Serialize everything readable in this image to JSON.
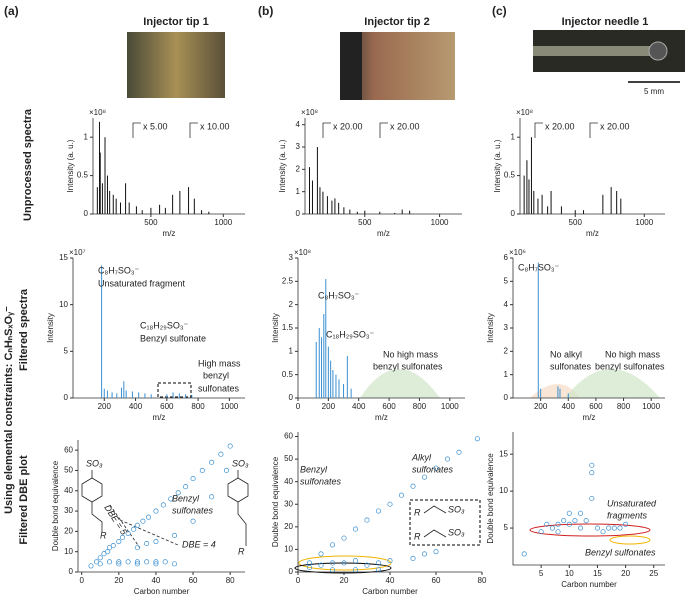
{
  "panel_labels": [
    "(a)",
    "(b)",
    "(c)"
  ],
  "column_titles": [
    "Injector tip 1",
    "Injector tip 2",
    "Injector needle 1"
  ],
  "row_labels": [
    "Unprocessed spectra",
    "Filtered spectra",
    "Filtered DBE plot"
  ],
  "group_label": "Using elemental constraints: CₙHₙSₓOᵧ⁻",
  "scale_bar": "5 mm",
  "chart_data": [
    {
      "type": "spectrum",
      "xlabel": "m/z",
      "ylabel": "Intensity (a. u.)",
      "y_exponent": "×10⁸",
      "color": "#111111",
      "x": [
        130,
        145,
        150,
        165,
        183,
        200,
        215,
        240,
        260,
        290,
        325,
        350,
        400,
        440,
        500,
        560,
        600,
        650,
        700,
        760,
        800,
        850,
        900
      ],
      "values": [
        0.35,
        1.2,
        0.8,
        0.4,
        1.0,
        0.5,
        0.3,
        0.25,
        0.2,
        0.15,
        0.4,
        0.15,
        0.1,
        0.05,
        0.08,
        0.12,
        0.08,
        0.25,
        0.3,
        0.35,
        0.2,
        0.05,
        0.03
      ],
      "xlim": [
        100,
        1150
      ],
      "xticks": [
        500,
        1000
      ],
      "ylim": [
        0,
        1.25
      ],
      "yticks": [
        0,
        0.5,
        1
      ],
      "annotations": [
        "x 5.00",
        "x 10.00"
      ]
    },
    {
      "type": "spectrum",
      "xlabel": "m/z",
      "ylabel": "Intensity (a. u.)",
      "y_exponent": "×10⁸",
      "color": "#111111",
      "x": [
        130,
        150,
        183,
        200,
        220,
        250,
        280,
        300,
        325,
        360,
        400,
        450,
        500,
        600,
        700,
        750,
        800
      ],
      "values": [
        2.1,
        1.5,
        3.0,
        1.2,
        1.0,
        0.8,
        0.6,
        0.7,
        0.5,
        0.3,
        0.2,
        0.1,
        0.15,
        0.1,
        0.05,
        0.2,
        0.15
      ],
      "xlim": [
        100,
        1150
      ],
      "xticks": [
        500,
        1000
      ],
      "ylim": [
        0,
        4.3
      ],
      "yticks": [
        0,
        1,
        2,
        3,
        4
      ],
      "annotations": [
        "x 20.00",
        "x 20.00"
      ]
    },
    {
      "type": "spectrum",
      "xlabel": "m/z",
      "ylabel": "Intensity (a. u.)",
      "y_exponent": "×10⁸",
      "color": "#111111",
      "x": [
        130,
        150,
        165,
        183,
        200,
        230,
        260,
        300,
        325,
        400,
        500,
        560,
        700,
        760,
        800,
        830
      ],
      "values": [
        0.5,
        0.7,
        0.45,
        1.0,
        0.3,
        0.2,
        0.25,
        0.1,
        0.3,
        0.1,
        0.05,
        0.05,
        0.25,
        0.35,
        0.3,
        0.2
      ],
      "xlim": [
        100,
        1150
      ],
      "xticks": [
        500,
        1000
      ],
      "ylim": [
        0,
        1.25
      ],
      "yticks": [
        0,
        0.5,
        1
      ],
      "annotations": [
        "x 20.00",
        "x 20.00"
      ]
    },
    {
      "type": "spectrum",
      "xlabel": "m/z",
      "ylabel": "Intensity",
      "y_exponent": "×10⁷",
      "color": "#3a8fd0",
      "x": [
        183,
        200,
        220,
        250,
        280,
        310,
        325,
        340,
        380,
        420,
        460,
        500,
        600,
        640,
        680,
        720,
        760
      ],
      "values": [
        14.2,
        1.0,
        0.8,
        0.6,
        0.5,
        1.1,
        1.8,
        0.8,
        0.7,
        0.6,
        0.5,
        0.4,
        0.4,
        0.6,
        0.5,
        0.4,
        0.3
      ],
      "xlim": [
        0,
        1100
      ],
      "xticks": [
        200,
        400,
        600,
        800,
        1000
      ],
      "ylim": [
        0,
        15
      ],
      "yticks": [
        0,
        5,
        10,
        15
      ],
      "annotations": [
        "C₈H₇SO₃⁻",
        "Unsaturated fragment",
        "C₁₈H₂₉SO₃⁻",
        "Benzyl sulfonate",
        "High mass",
        "benzyl",
        "sulfonates"
      ]
    },
    {
      "type": "spectrum",
      "xlabel": "m/z",
      "ylabel": "Intensity",
      "y_exponent": "×10⁸",
      "color": "#3a8fd0",
      "x": [
        120,
        140,
        155,
        170,
        183,
        200,
        215,
        230,
        250,
        270,
        300,
        325,
        350
      ],
      "values": [
        1.2,
        1.5,
        1.3,
        1.8,
        2.55,
        1.1,
        0.8,
        0.6,
        0.5,
        0.4,
        0.3,
        0.9,
        0.2
      ],
      "xlim": [
        0,
        1100
      ],
      "xticks": [
        0,
        200,
        400,
        600,
        800,
        1000
      ],
      "ylim": [
        0,
        3
      ],
      "yticks": [
        0,
        0.5,
        1,
        1.5,
        2,
        2.5,
        3
      ],
      "annotations": [
        "C₈H₇SO₃⁻",
        "C₁₈H₂₉SO₃⁻",
        "No high mass",
        "benzyl sulfonates"
      ]
    },
    {
      "type": "spectrum",
      "xlabel": "m/z",
      "ylabel": "Intensity",
      "y_exponent": "×10⁶",
      "color": "#3a8fd0",
      "x": [
        183,
        200,
        325,
        340,
        400
      ],
      "values": [
        5.8,
        0.4,
        0.5,
        0.4,
        0.2
      ],
      "xlim": [
        0,
        1100
      ],
      "xticks": [
        200,
        400,
        600,
        800,
        1000
      ],
      "ylim": [
        0,
        6
      ],
      "yticks": [
        0,
        1,
        2,
        3,
        4,
        5,
        6
      ],
      "annotations": [
        "C₈H₇SO₃⁻",
        "No alkyl",
        "sulfonates",
        "No high mass",
        "benzyl sulfonates"
      ]
    },
    {
      "type": "scatter",
      "xlabel": "Carbon number",
      "ylabel": "Double bond equivalence",
      "color": "#3a8fd0",
      "x": [
        5,
        8,
        10,
        12,
        14,
        15,
        17,
        20,
        22,
        25,
        28,
        30,
        33,
        36,
        40,
        44,
        48,
        52,
        56,
        60,
        65,
        70,
        75,
        80,
        15,
        20,
        25,
        30,
        35,
        40,
        45,
        10,
        20,
        30,
        40,
        50,
        40,
        50,
        60,
        70,
        78,
        30,
        35
      ],
      "values": [
        3,
        5,
        7,
        9,
        10,
        12,
        13,
        15,
        17,
        19,
        21,
        23,
        25,
        27,
        30,
        33,
        36,
        39,
        42,
        46,
        50,
        54,
        58,
        62,
        5,
        5,
        5,
        5,
        5,
        5,
        5,
        4,
        4,
        4,
        4,
        4,
        15,
        18,
        25,
        37,
        50,
        12,
        14
      ],
      "xlim": [
        -2,
        88
      ],
      "xticks": [
        0,
        20,
        40,
        60,
        80
      ],
      "ylim": [
        0,
        65
      ],
      "yticks": [
        0,
        10,
        20,
        30,
        40,
        50,
        60
      ],
      "annotations": [
        "SO₃",
        "R",
        "DBE = 5",
        "Benzyl",
        "sulfonates",
        "DBE = 4",
        "SO₃",
        "R"
      ]
    },
    {
      "type": "scatter",
      "xlabel": "Carbon number",
      "ylabel": "Double bond equivalence",
      "color": "#3a8fd0",
      "x": [
        5,
        10,
        15,
        20,
        25,
        30,
        35,
        40,
        45,
        50,
        55,
        60,
        65,
        70,
        78,
        5,
        10,
        15,
        20,
        25,
        30,
        35,
        40,
        15,
        25,
        35,
        50,
        55,
        60
      ],
      "values": [
        4,
        8,
        12,
        15,
        19,
        23,
        27,
        30,
        34,
        38,
        42,
        46,
        50,
        53,
        59,
        2,
        3,
        4,
        4,
        5,
        3,
        4,
        5,
        1,
        1,
        1,
        6,
        8,
        9
      ],
      "xlim": [
        0,
        80
      ],
      "xticks": [
        0,
        20,
        40,
        60,
        80
      ],
      "ylim": [
        0,
        62
      ],
      "yticks": [
        0,
        10,
        20,
        30,
        40,
        50,
        60
      ],
      "annotations": [
        "Benzyl",
        "sulfonates",
        "Alkyl",
        "sulfonates",
        "R",
        "SO₃",
        "R",
        "SO₃"
      ]
    },
    {
      "type": "scatter",
      "xlabel": "Carbon number",
      "ylabel": "Double bond equivalence",
      "color": "#3a8fd0",
      "x": [
        2,
        5,
        6,
        7,
        8,
        8,
        9,
        10,
        10,
        11,
        12,
        12,
        13,
        14,
        14,
        14,
        15,
        16,
        17,
        18,
        19,
        20
      ],
      "values": [
        1.5,
        4.5,
        5.5,
        5,
        5.5,
        4.5,
        6,
        5.5,
        7,
        6,
        5,
        7,
        6,
        12.5,
        13.5,
        9,
        5,
        4.5,
        5,
        5,
        5,
        5.5
      ],
      "xlim": [
        0,
        27
      ],
      "xticks": [
        5,
        10,
        15,
        20,
        25
      ],
      "ylim": [
        0,
        18
      ],
      "yticks": [
        5,
        10,
        15
      ],
      "annotations": [
        "Unsaturated",
        "fragments",
        "Benzyl sulfonates"
      ]
    }
  ]
}
